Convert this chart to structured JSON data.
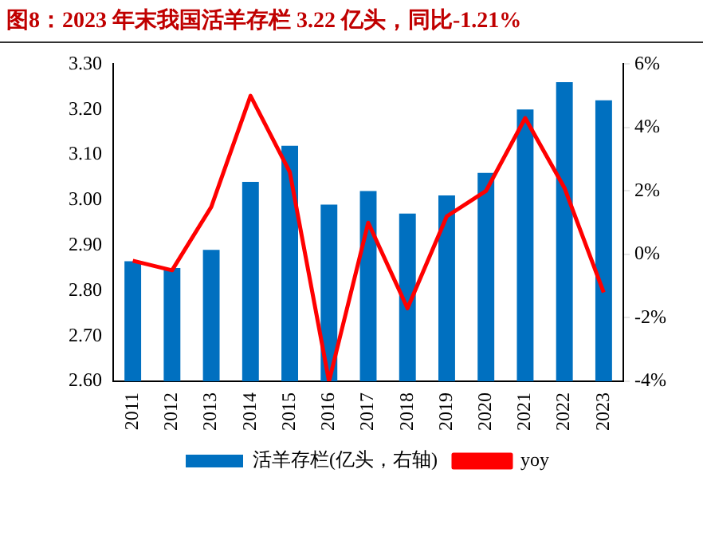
{
  "chart_data": {
    "type": "bar",
    "title": "图8：2023 年末我国活羊存栏 3.22 亿头，同比-1.21%",
    "categories": [
      "2011",
      "2012",
      "2013",
      "2014",
      "2015",
      "2016",
      "2017",
      "2018",
      "2019",
      "2020",
      "2021",
      "2022",
      "2023"
    ],
    "series": [
      {
        "name": "活羊存栏(亿头，右轴)",
        "color": "#0070c0",
        "values": [
          2.865,
          2.85,
          2.89,
          3.04,
          3.12,
          2.99,
          3.02,
          2.97,
          3.01,
          3.06,
          3.2,
          3.26,
          3.22
        ]
      },
      {
        "name": "yoy",
        "type": "line",
        "axis": "y2",
        "color": "#ff0000",
        "values": [
          -0.2,
          -0.5,
          1.5,
          5.0,
          2.6,
          -4.0,
          1.0,
          -1.7,
          1.2,
          2.0,
          4.3,
          2.1,
          -1.2
        ]
      }
    ],
    "ylim": [
      2.6,
      3.3
    ],
    "yticks": [
      {
        "value": 2.6,
        "label": "2.60"
      },
      {
        "value": 2.7,
        "label": "2.70"
      },
      {
        "value": 2.8,
        "label": "2.80"
      },
      {
        "value": 2.9,
        "label": "2.90"
      },
      {
        "value": 3.0,
        "label": "3.00"
      },
      {
        "value": 3.1,
        "label": "3.10"
      },
      {
        "value": 3.2,
        "label": "3.20"
      },
      {
        "value": 3.3,
        "label": "3.30"
      }
    ],
    "y2lim": [
      -4,
      6
    ],
    "y2ticks": [
      {
        "value": -4,
        "label": "-4%"
      },
      {
        "value": -2,
        "label": "-2%"
      },
      {
        "value": 0,
        "label": "0%"
      },
      {
        "value": 2,
        "label": "2%"
      },
      {
        "value": 4,
        "label": "4%"
      },
      {
        "value": 6,
        "label": "6%"
      }
    ],
    "grid": false,
    "legend": "bottom",
    "marker": "none",
    "line_style": "solid"
  }
}
